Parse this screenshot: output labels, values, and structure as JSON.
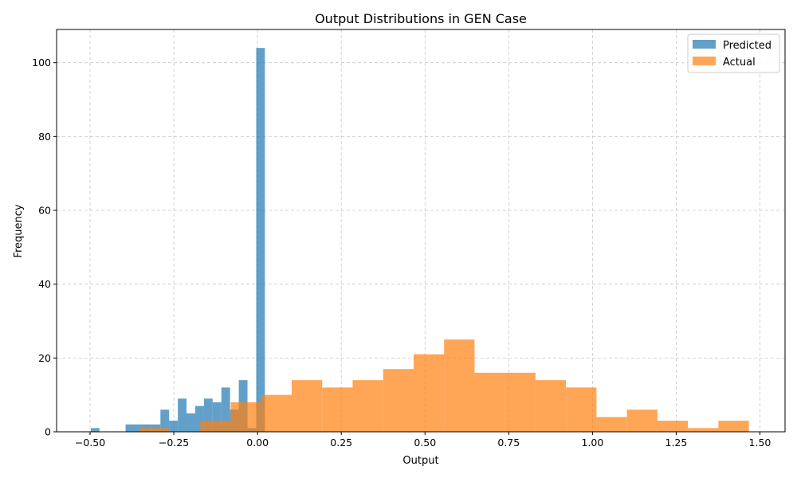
{
  "chart_data": {
    "type": "bar",
    "title": "Output Distributions in GEN Case",
    "xlabel": "Output",
    "ylabel": "Frequency",
    "xlim": [
      -0.6,
      1.575
    ],
    "ylim": [
      0,
      109
    ],
    "xticks": [
      -0.5,
      -0.25,
      0.0,
      0.25,
      0.5,
      0.75,
      1.0,
      1.25,
      1.5
    ],
    "xtick_labels": [
      "−0.50",
      "−0.25",
      "0.00",
      "0.25",
      "0.50",
      "0.75",
      "1.00",
      "1.25",
      "1.50"
    ],
    "yticks": [
      0,
      20,
      40,
      60,
      80,
      100
    ],
    "ytick_labels": [
      "0",
      "20",
      "40",
      "60",
      "80",
      "100"
    ],
    "grid": true,
    "legend_position": "top-right",
    "series": [
      {
        "name": "Predicted",
        "color": "#1f77b4",
        "opacity": 0.7,
        "bin_edges": [
          -0.498,
          -0.472,
          -0.446,
          -0.42,
          -0.394,
          -0.368,
          -0.342,
          -0.316,
          -0.29,
          -0.264,
          -0.238,
          -0.212,
          -0.186,
          -0.16,
          -0.134,
          -0.108,
          -0.082,
          -0.056,
          -0.03,
          -0.004,
          0.022
        ],
        "counts": [
          1,
          0,
          0,
          0,
          2,
          2,
          2,
          2,
          6,
          3,
          9,
          5,
          7,
          9,
          8,
          12,
          6,
          14,
          1,
          104
        ]
      },
      {
        "name": "Actual",
        "color": "#ff7f0e",
        "opacity": 0.7,
        "bin_edges": [
          -0.353,
          -0.262,
          -0.171,
          -0.08,
          0.011,
          0.102,
          0.193,
          0.284,
          0.375,
          0.466,
          0.557,
          0.648,
          0.739,
          0.83,
          0.921,
          1.012,
          1.103,
          1.194,
          1.285,
          1.376,
          1.467
        ],
        "counts": [
          1,
          0,
          3,
          8,
          10,
          14,
          12,
          14,
          17,
          21,
          25,
          16,
          16,
          14,
          12,
          4,
          6,
          3,
          1,
          3
        ]
      }
    ]
  }
}
